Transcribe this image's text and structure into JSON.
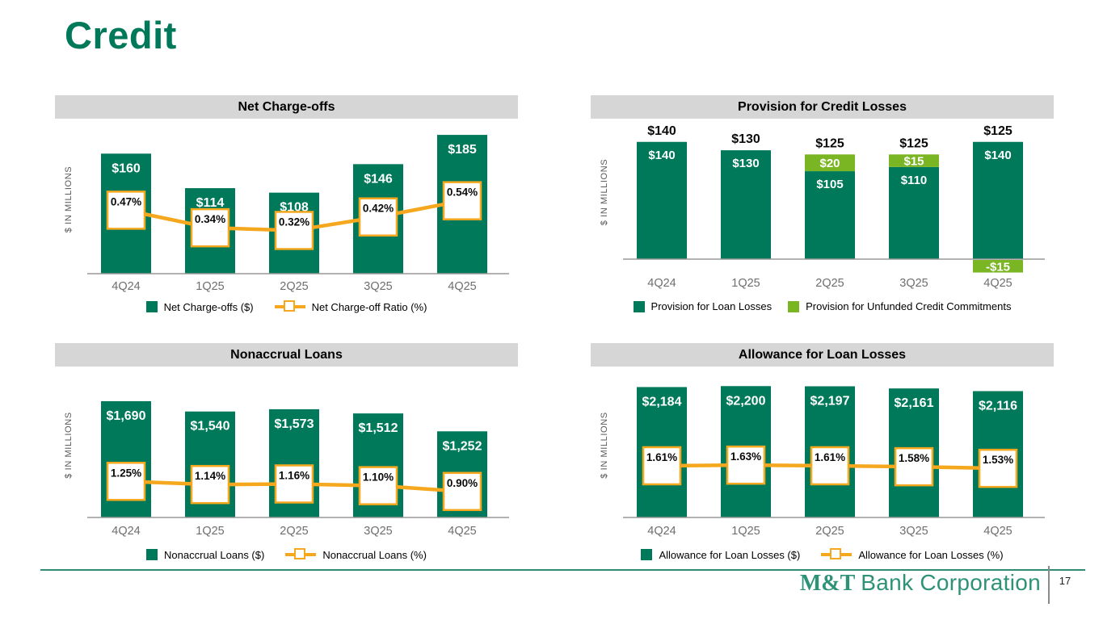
{
  "title": "Credit",
  "colors": {
    "green": "#00795B",
    "light_green": "#7AB623",
    "orange": "#F5A81E",
    "header_gray": "#D6D6D6",
    "title_green": "#00785A",
    "logo_green": "#2E9277"
  },
  "footer": {
    "logo_bold": "M&T",
    "logo_rest": "Bank Corporation",
    "page_number": "17"
  },
  "chart_data": [
    {
      "type": "bar-line",
      "title": "Net Charge-offs",
      "ylabel": "$ IN MILLIONS",
      "categories": [
        "4Q24",
        "1Q25",
        "2Q25",
        "3Q25",
        "4Q25"
      ],
      "bars": {
        "name": "Net Charge-offs ($)",
        "values": [
          160,
          114,
          108,
          146,
          185
        ],
        "labels": [
          "$160",
          "$114",
          "$108",
          "$146",
          "$185"
        ]
      },
      "line": {
        "name": "Net Charge-off Ratio (%)",
        "values": [
          0.47,
          0.34,
          0.32,
          0.42,
          0.54
        ],
        "labels": [
          "0.47%",
          "0.34%",
          "0.32%",
          "0.42%",
          "0.54%"
        ]
      },
      "layout": {
        "bar_axis_max": 198,
        "line_axis_max": 1.1,
        "baseline": 192,
        "tick_offset": 20,
        "legend_position": "bottom",
        "grid": false
      }
    },
    {
      "type": "stacked-bar",
      "title": "Provision for Credit Losses",
      "ylabel": "$ IN MILLIONS",
      "categories": [
        "4Q24",
        "1Q25",
        "2Q25",
        "3Q25",
        "4Q25"
      ],
      "series": [
        {
          "name": "Provision for Loan Losses",
          "color_key": "green",
          "values": [
            140,
            130,
            105,
            110,
            140
          ],
          "labels": [
            "$140",
            "$130",
            "$105",
            "$110",
            "$140"
          ]
        },
        {
          "name": "Provision for Unfunded Credit Commitments",
          "color_key": "light_green",
          "values": [
            0,
            0,
            20,
            15,
            -15
          ],
          "labels": [
            "",
            "",
            "$20",
            "$15",
            "-$15"
          ]
        }
      ],
      "totals": [
        "$140",
        "$130",
        "$125",
        "$125",
        "$125"
      ],
      "layout": {
        "bar_axis_max": 160,
        "baseline": 174,
        "tick_offset": 34,
        "legend_position": "bottom",
        "grid": false
      }
    },
    {
      "type": "bar-line",
      "title": "Nonaccrual Loans",
      "ylabel": "$ IN MILLIONS",
      "categories": [
        "4Q24",
        "1Q25",
        "2Q25",
        "3Q25",
        "4Q25"
      ],
      "bars": {
        "name": "Nonaccrual Loans ($)",
        "values": [
          1690,
          1540,
          1573,
          1512,
          1252
        ],
        "labels": [
          "$1,690",
          "$1,540",
          "$1,573",
          "$1,512",
          "$1,252"
        ]
      },
      "line": {
        "name": "Nonaccrual Loans (%)",
        "values": [
          1.25,
          1.14,
          1.16,
          1.1,
          0.9
        ],
        "labels": [
          "1.25%",
          "1.14%",
          "1.16%",
          "1.10%",
          "0.90%"
        ]
      },
      "layout": {
        "bar_axis_max": 2100,
        "line_axis_max": 5.0,
        "baseline": 187,
        "tick_offset": 21,
        "legend_position": "bottom",
        "grid": false
      }
    },
    {
      "type": "bar-line",
      "title": "Allowance for Loan Losses",
      "ylabel": "$ IN MILLIONS",
      "categories": [
        "4Q24",
        "1Q25",
        "2Q25",
        "3Q25",
        "4Q25"
      ],
      "bars": {
        "name": "Allowance for Loan Losses ($)",
        "values": [
          2184,
          2200,
          2197,
          2161,
          2116
        ],
        "labels": [
          "$2,184",
          "$2,200",
          "$2,197",
          "$2,161",
          "$2,116"
        ]
      },
      "line": {
        "name": "Allowance for Loan Losses (%)",
        "values": [
          1.61,
          1.63,
          1.61,
          1.58,
          1.53
        ],
        "labels": [
          "1.61%",
          "1.63%",
          "1.61%",
          "1.58%",
          "1.53%"
        ]
      },
      "layout": {
        "bar_axis_max": 2420,
        "line_axis_max": 4.5,
        "baseline": 187,
        "tick_offset": 21,
        "legend_position": "bottom",
        "grid": false
      }
    }
  ]
}
